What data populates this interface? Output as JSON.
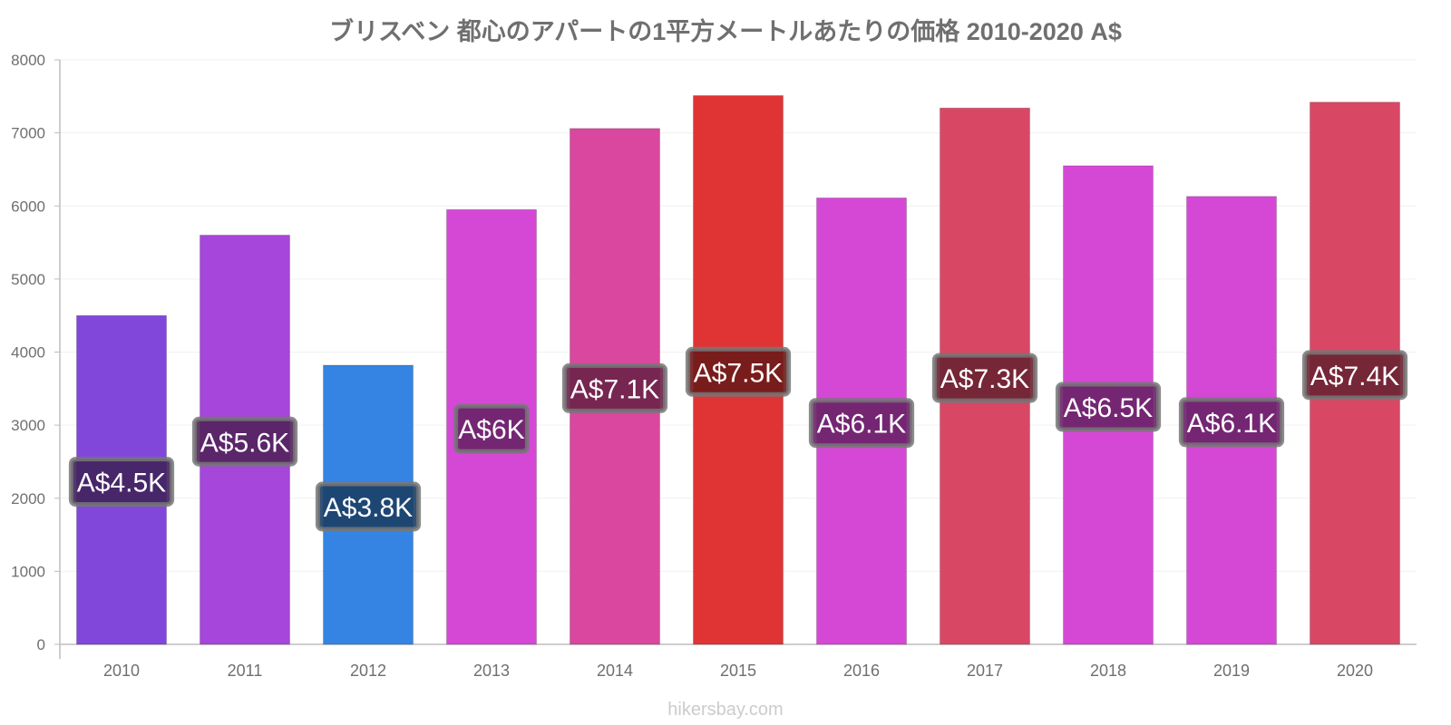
{
  "chart_data": {
    "type": "bar",
    "title": "ブリスベン 都心のアパートの1平方メートルあたりの価格 2010-2020 A$",
    "xlabel": "",
    "ylabel": "",
    "categories": [
      "2010",
      "2011",
      "2012",
      "2013",
      "2014",
      "2015",
      "2016",
      "2017",
      "2018",
      "2019",
      "2020"
    ],
    "values": [
      4500,
      5600,
      3820,
      5950,
      7060,
      7510,
      6110,
      7340,
      6550,
      6130,
      7420
    ],
    "data_labels": [
      "A$4.5K",
      "A$5.6K",
      "A$3.8K",
      "A$6K",
      "A$7.1K",
      "A$7.5K",
      "A$6.1K",
      "A$7.3K",
      "A$6.5K",
      "A$6.1K",
      "A$7.4K"
    ],
    "bar_colors": [
      "#8147da",
      "#a646da",
      "#3584e4",
      "#d548d6",
      "#da479e",
      "#e03434",
      "#d548d6",
      "#d84865",
      "#d548d6",
      "#d548d6",
      "#d84865"
    ],
    "label_colors": [
      "#40225c",
      "#52225c",
      "#1c3f66",
      "#6a2268",
      "#6a2248",
      "#6e1a1a",
      "#6a2268",
      "#6a2232",
      "#6a2268",
      "#6a2268",
      "#6a2232"
    ],
    "ylim": [
      0,
      8000
    ],
    "yticks": [
      "0",
      "1000",
      "2000",
      "3000",
      "4000",
      "5000",
      "6000",
      "7000",
      "8000"
    ],
    "grid": true,
    "legend": "none"
  },
  "watermark": "hikersbay.com"
}
